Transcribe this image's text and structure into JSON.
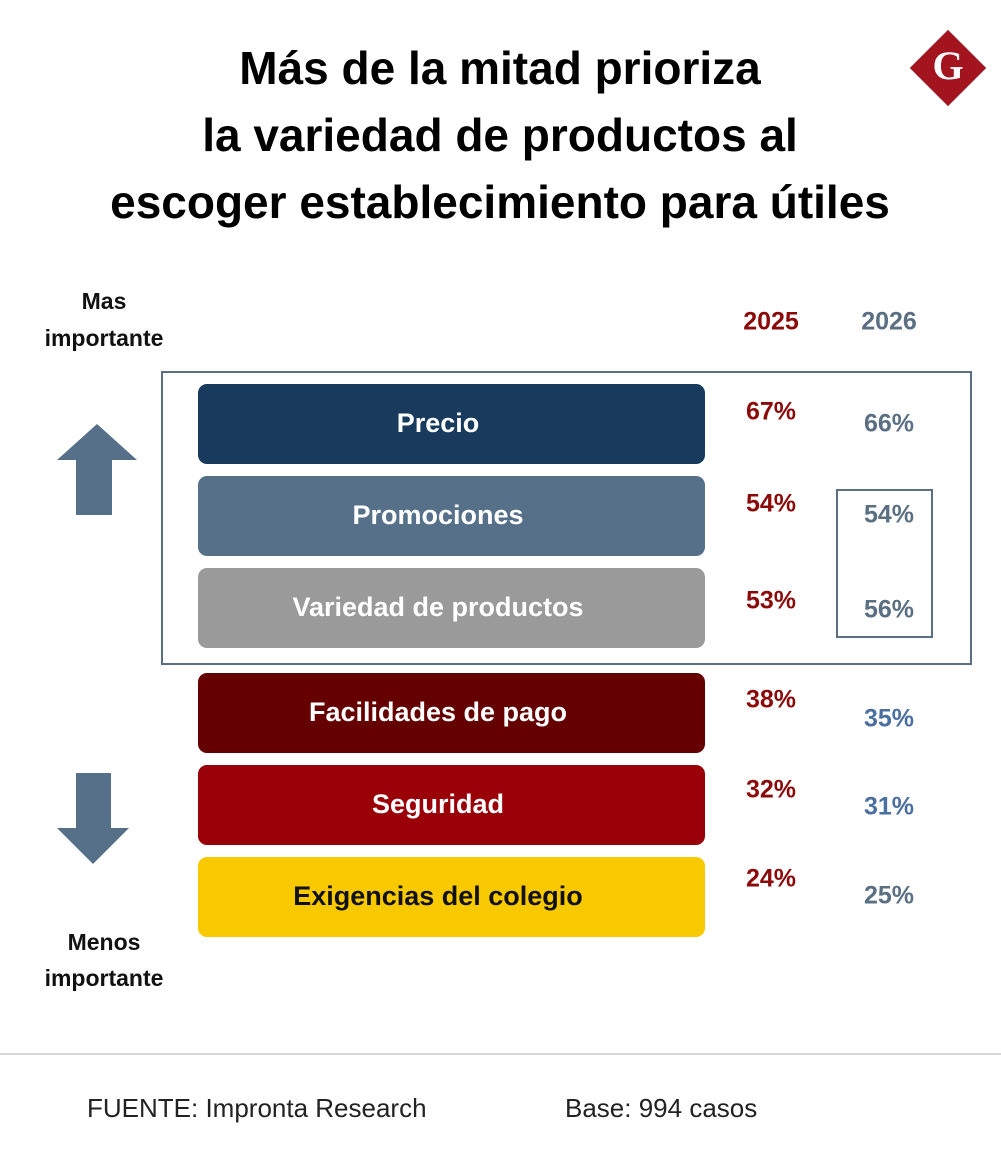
{
  "header": {
    "title_lines": [
      "Más de la mitad prioriza",
      "la variedad de productos al",
      "escoger establecimiento para útiles"
    ],
    "logo": "G"
  },
  "labels": {
    "top": [
      "Mas",
      "importante"
    ],
    "bottom": [
      "Menos",
      "importante"
    ]
  },
  "columns": [
    {
      "text": "2025",
      "color": "#8b0a0a"
    },
    {
      "text": "2026",
      "color": "#5a6f82"
    }
  ],
  "rows": [
    {
      "label": "Precio",
      "color": "#183a5c",
      "text_color": "#ffffff",
      "value_2025": "67%",
      "value_2026": "66%",
      "color_2026": "#5a6f82"
    },
    {
      "label": "Promociones",
      "color": "#56708a",
      "text_color": "#ffffff",
      "value_2025": "54%",
      "value_2026": "54%",
      "color_2026": "#5a6f82"
    },
    {
      "label": "Variedad de productos",
      "color": "#9a9a9a",
      "text_color": "#ffffff",
      "value_2025": "53%",
      "value_2026": "56%",
      "color_2026": "#5a6f82"
    },
    {
      "label": "Facilidades de pago",
      "color": "#650000",
      "text_color": "#ffffff",
      "value_2025": "38%",
      "value_2026": "35%",
      "color_2026": "#4a6fa0"
    },
    {
      "label": "Seguridad",
      "color": "#990008",
      "text_color": "#ffffff",
      "value_2025": "32%",
      "value_2026": "31%",
      "color_2026": "#4a6fa0"
    },
    {
      "label": "Exigencias del colegio",
      "color": "#f9c900",
      "text_color": "#111111",
      "value_2025": "24%",
      "value_2026": "25%",
      "color_2026": "#5a6f82"
    }
  ],
  "footer": {
    "source": "FUENTE: Impronta Research",
    "base": "Base: 994 casos"
  }
}
